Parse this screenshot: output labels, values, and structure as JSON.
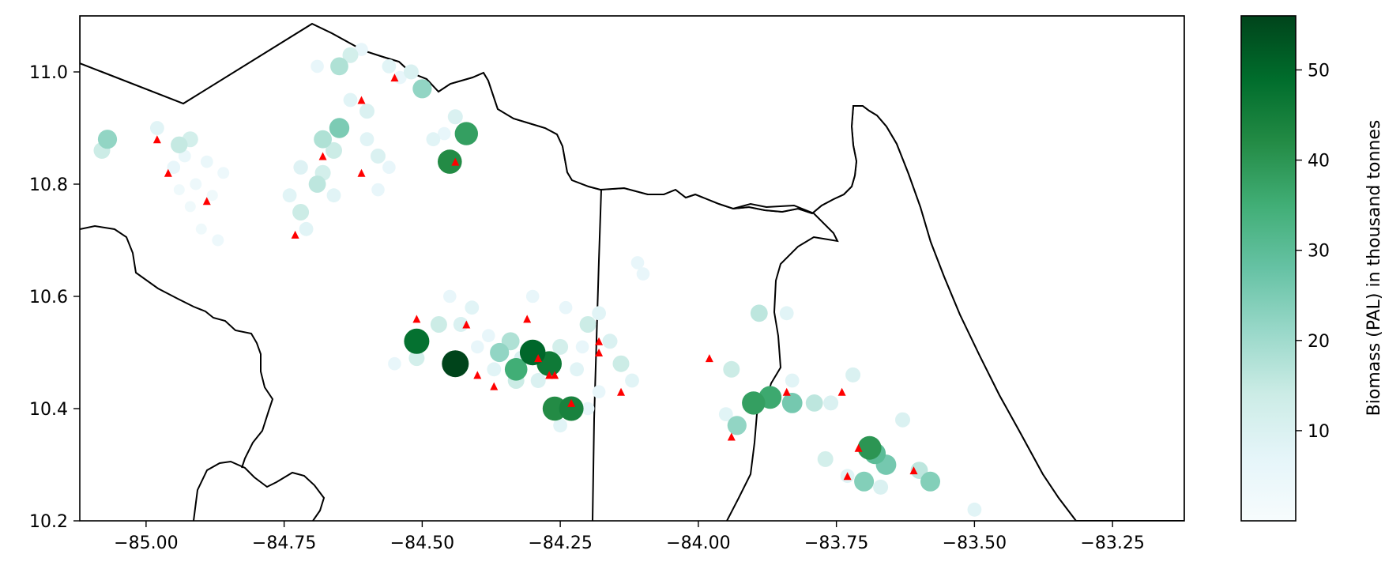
{
  "figure": {
    "map": {
      "xlim": [
        -85.12,
        -83.12
      ],
      "ylim": [
        10.2,
        11.1
      ],
      "x_ticks": [
        -85.0,
        -84.75,
        -84.5,
        -84.25,
        -84.0,
        -83.75,
        -83.5,
        -83.25
      ],
      "x_tick_labels": [
        "−85.00",
        "−84.75",
        "−84.50",
        "−84.25",
        "−84.00",
        "−83.75",
        "−83.50",
        "−83.25"
      ],
      "y_ticks": [
        10.2,
        10.4,
        10.6,
        10.8,
        11.0
      ],
      "y_tick_labels": [
        "10.2",
        "10.4",
        "10.6",
        "10.8",
        "11.0"
      ],
      "land_color": "#f5deb3",
      "border_color": "#000000"
    },
    "colorbar": {
      "label": "Biomass (PAL) in thousand tonnes",
      "colormap": "BuGn",
      "range": [
        0,
        56
      ],
      "ticks": [
        10,
        20,
        30,
        40,
        50
      ],
      "tick_labels": [
        "10",
        "20",
        "30",
        "40",
        "50"
      ]
    }
  },
  "chart_data": {
    "type": "scatter",
    "title": "",
    "xlabel": "",
    "ylabel": "",
    "xlim": [
      -85.12,
      -83.12
    ],
    "ylim": [
      10.2,
      11.1
    ],
    "colorbar_label": "Biomass (PAL) in thousand tonnes",
    "color_range": [
      0,
      56
    ],
    "series": [
      {
        "marker": "circle",
        "note_value": "biomass",
        "points": [
          {
            "lon": -85.08,
            "lat": 10.86,
            "v": 14
          },
          {
            "lon": -85.07,
            "lat": 10.88,
            "v": 22
          },
          {
            "lon": -84.94,
            "lat": 10.87,
            "v": 15
          },
          {
            "lon": -84.98,
            "lat": 10.9,
            "v": 8
          },
          {
            "lon": -84.92,
            "lat": 10.88,
            "v": 12
          },
          {
            "lon": -84.93,
            "lat": 10.85,
            "v": 5
          },
          {
            "lon": -84.95,
            "lat": 10.83,
            "v": 6
          },
          {
            "lon": -84.91,
            "lat": 10.8,
            "v": 4
          },
          {
            "lon": -84.89,
            "lat": 10.84,
            "v": 5
          },
          {
            "lon": -84.92,
            "lat": 10.76,
            "v": 3
          },
          {
            "lon": -84.9,
            "lat": 10.72,
            "v": 3
          },
          {
            "lon": -84.87,
            "lat": 10.7,
            "v": 4
          },
          {
            "lon": -84.88,
            "lat": 10.78,
            "v": 3
          },
          {
            "lon": -84.94,
            "lat": 10.79,
            "v": 3
          },
          {
            "lon": -84.86,
            "lat": 10.82,
            "v": 4
          },
          {
            "lon": -84.69,
            "lat": 11.01,
            "v": 6
          },
          {
            "lon": -84.65,
            "lat": 11.01,
            "v": 18
          },
          {
            "lon": -84.63,
            "lat": 11.03,
            "v": 12
          },
          {
            "lon": -84.61,
            "lat": 11.04,
            "v": 6
          },
          {
            "lon": -84.56,
            "lat": 11.01,
            "v": 8
          },
          {
            "lon": -84.54,
            "lat": 10.99,
            "v": 6
          },
          {
            "lon": -84.52,
            "lat": 11.0,
            "v": 10
          },
          {
            "lon": -84.5,
            "lat": 10.97,
            "v": 22
          },
          {
            "lon": -84.63,
            "lat": 10.95,
            "v": 8
          },
          {
            "lon": -84.6,
            "lat": 10.93,
            "v": 10
          },
          {
            "lon": -84.65,
            "lat": 10.9,
            "v": 25
          },
          {
            "lon": -84.68,
            "lat": 10.88,
            "v": 18
          },
          {
            "lon": -84.66,
            "lat": 10.86,
            "v": 14
          },
          {
            "lon": -84.6,
            "lat": 10.88,
            "v": 8
          },
          {
            "lon": -84.58,
            "lat": 10.85,
            "v": 10
          },
          {
            "lon": -84.56,
            "lat": 10.83,
            "v": 6
          },
          {
            "lon": -84.68,
            "lat": 10.82,
            "v": 12
          },
          {
            "lon": -84.69,
            "lat": 10.8,
            "v": 16
          },
          {
            "lon": -84.72,
            "lat": 10.83,
            "v": 9
          },
          {
            "lon": -84.74,
            "lat": 10.78,
            "v": 8
          },
          {
            "lon": -84.72,
            "lat": 10.75,
            "v": 14
          },
          {
            "lon": -84.71,
            "lat": 10.72,
            "v": 8
          },
          {
            "lon": -84.66,
            "lat": 10.78,
            "v": 8
          },
          {
            "lon": -84.58,
            "lat": 10.79,
            "v": 6
          },
          {
            "lon": -84.44,
            "lat": 10.92,
            "v": 10
          },
          {
            "lon": -84.46,
            "lat": 10.89,
            "v": 6
          },
          {
            "lon": -84.42,
            "lat": 10.89,
            "v": 38
          },
          {
            "lon": -84.45,
            "lat": 10.84,
            "v": 42
          },
          {
            "lon": -84.48,
            "lat": 10.88,
            "v": 8
          },
          {
            "lon": -84.51,
            "lat": 10.52,
            "v": 48
          },
          {
            "lon": -84.44,
            "lat": 10.48,
            "v": 56
          },
          {
            "lon": -84.51,
            "lat": 10.49,
            "v": 12
          },
          {
            "lon": -84.47,
            "lat": 10.55,
            "v": 14
          },
          {
            "lon": -84.43,
            "lat": 10.55,
            "v": 10
          },
          {
            "lon": -84.41,
            "lat": 10.58,
            "v": 8
          },
          {
            "lon": -84.38,
            "lat": 10.53,
            "v": 6
          },
          {
            "lon": -84.36,
            "lat": 10.5,
            "v": 22
          },
          {
            "lon": -84.34,
            "lat": 10.52,
            "v": 18
          },
          {
            "lon": -84.32,
            "lat": 10.49,
            "v": 10
          },
          {
            "lon": -84.33,
            "lat": 10.47,
            "v": 35
          },
          {
            "lon": -84.3,
            "lat": 10.5,
            "v": 50
          },
          {
            "lon": -84.27,
            "lat": 10.48,
            "v": 46
          },
          {
            "lon": -84.25,
            "lat": 10.51,
            "v": 12
          },
          {
            "lon": -84.22,
            "lat": 10.47,
            "v": 8
          },
          {
            "lon": -84.2,
            "lat": 10.55,
            "v": 14
          },
          {
            "lon": -84.18,
            "lat": 10.57,
            "v": 8
          },
          {
            "lon": -84.16,
            "lat": 10.52,
            "v": 10
          },
          {
            "lon": -84.14,
            "lat": 10.48,
            "v": 14
          },
          {
            "lon": -84.12,
            "lat": 10.45,
            "v": 8
          },
          {
            "lon": -84.26,
            "lat": 10.4,
            "v": 42
          },
          {
            "lon": -84.23,
            "lat": 10.4,
            "v": 44
          },
          {
            "lon": -84.25,
            "lat": 10.37,
            "v": 8
          },
          {
            "lon": -84.29,
            "lat": 10.45,
            "v": 10
          },
          {
            "lon": -84.33,
            "lat": 10.45,
            "v": 14
          },
          {
            "lon": -84.37,
            "lat": 10.47,
            "v": 8
          },
          {
            "lon": -84.4,
            "lat": 10.51,
            "v": 6
          },
          {
            "lon": -84.45,
            "lat": 10.6,
            "v": 6
          },
          {
            "lon": -84.3,
            "lat": 10.6,
            "v": 6
          },
          {
            "lon": -84.24,
            "lat": 10.58,
            "v": 6
          },
          {
            "lon": -84.21,
            "lat": 10.51,
            "v": 6
          },
          {
            "lon": -84.18,
            "lat": 10.43,
            "v": 6
          },
          {
            "lon": -84.2,
            "lat": 10.4,
            "v": 6
          },
          {
            "lon": -84.55,
            "lat": 10.48,
            "v": 6
          },
          {
            "lon": -84.11,
            "lat": 10.66,
            "v": 6
          },
          {
            "lon": -84.1,
            "lat": 10.64,
            "v": 6
          },
          {
            "lon": -83.89,
            "lat": 10.57,
            "v": 16
          },
          {
            "lon": -83.84,
            "lat": 10.57,
            "v": 8
          },
          {
            "lon": -83.94,
            "lat": 10.47,
            "v": 14
          },
          {
            "lon": -83.9,
            "lat": 10.41,
            "v": 38
          },
          {
            "lon": -83.87,
            "lat": 10.42,
            "v": 36
          },
          {
            "lon": -83.83,
            "lat": 10.41,
            "v": 26
          },
          {
            "lon": -83.79,
            "lat": 10.41,
            "v": 16
          },
          {
            "lon": -83.76,
            "lat": 10.41,
            "v": 10
          },
          {
            "lon": -83.72,
            "lat": 10.46,
            "v": 10
          },
          {
            "lon": -83.93,
            "lat": 10.37,
            "v": 22
          },
          {
            "lon": -83.95,
            "lat": 10.39,
            "v": 8
          },
          {
            "lon": -83.83,
            "lat": 10.45,
            "v": 8
          },
          {
            "lon": -83.77,
            "lat": 10.31,
            "v": 12
          },
          {
            "lon": -83.69,
            "lat": 10.33,
            "v": 40
          },
          {
            "lon": -83.68,
            "lat": 10.32,
            "v": 30
          },
          {
            "lon": -83.66,
            "lat": 10.3,
            "v": 26
          },
          {
            "lon": -83.7,
            "lat": 10.27,
            "v": 24
          },
          {
            "lon": -83.67,
            "lat": 10.26,
            "v": 10
          },
          {
            "lon": -83.63,
            "lat": 10.38,
            "v": 10
          },
          {
            "lon": -83.6,
            "lat": 10.29,
            "v": 16
          },
          {
            "lon": -83.58,
            "lat": 10.27,
            "v": 24
          },
          {
            "lon": -83.73,
            "lat": 10.28,
            "v": 8
          },
          {
            "lon": -83.5,
            "lat": 10.22,
            "v": 8
          }
        ]
      },
      {
        "marker": "triangle",
        "color": "#ff0000",
        "points": [
          {
            "lon": -84.98,
            "lat": 10.88
          },
          {
            "lon": -84.96,
            "lat": 10.82
          },
          {
            "lon": -84.89,
            "lat": 10.77
          },
          {
            "lon": -84.73,
            "lat": 10.71
          },
          {
            "lon": -84.68,
            "lat": 10.85
          },
          {
            "lon": -84.61,
            "lat": 10.82
          },
          {
            "lon": -84.61,
            "lat": 10.95
          },
          {
            "lon": -84.55,
            "lat": 10.99
          },
          {
            "lon": -84.44,
            "lat": 10.84
          },
          {
            "lon": -84.51,
            "lat": 10.56
          },
          {
            "lon": -84.42,
            "lat": 10.55
          },
          {
            "lon": -84.31,
            "lat": 10.56
          },
          {
            "lon": -84.29,
            "lat": 10.49
          },
          {
            "lon": -84.27,
            "lat": 10.46
          },
          {
            "lon": -84.26,
            "lat": 10.46
          },
          {
            "lon": -84.37,
            "lat": 10.44
          },
          {
            "lon": -84.4,
            "lat": 10.46
          },
          {
            "lon": -84.18,
            "lat": 10.52
          },
          {
            "lon": -84.18,
            "lat": 10.5
          },
          {
            "lon": -84.14,
            "lat": 10.43
          },
          {
            "lon": -84.23,
            "lat": 10.41
          },
          {
            "lon": -83.98,
            "lat": 10.49
          },
          {
            "lon": -83.94,
            "lat": 10.35
          },
          {
            "lon": -83.84,
            "lat": 10.43
          },
          {
            "lon": -83.74,
            "lat": 10.43
          },
          {
            "lon": -83.71,
            "lat": 10.33
          },
          {
            "lon": -83.73,
            "lat": 10.28
          },
          {
            "lon": -83.61,
            "lat": 10.29
          }
        ]
      }
    ]
  }
}
